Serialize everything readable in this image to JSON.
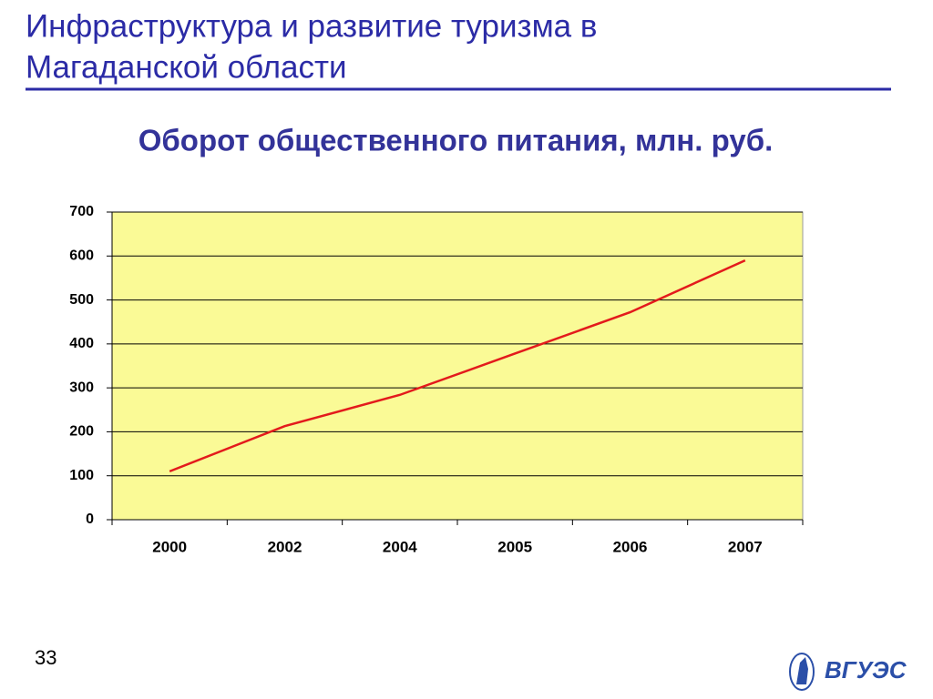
{
  "slide": {
    "title_lines": [
      "Инфраструктура и развитие туризма в",
      "Магаданской области"
    ],
    "page_number": "33",
    "logo_text": "ВГУЭС"
  },
  "chart_data": {
    "type": "line",
    "title": "Оборот общественного питания, млн. руб.",
    "categories": [
      "2000",
      "2002",
      "2004",
      "2005",
      "2006",
      "2007"
    ],
    "series": [
      {
        "color": "#e31a1c",
        "values": [
          110,
          213,
          284,
          378,
          472,
          590
        ]
      }
    ],
    "ylim": [
      0,
      700
    ],
    "yticks": [
      0,
      100,
      200,
      300,
      400,
      500,
      600,
      700
    ],
    "grid": true,
    "plot_background": "#fafa96"
  }
}
